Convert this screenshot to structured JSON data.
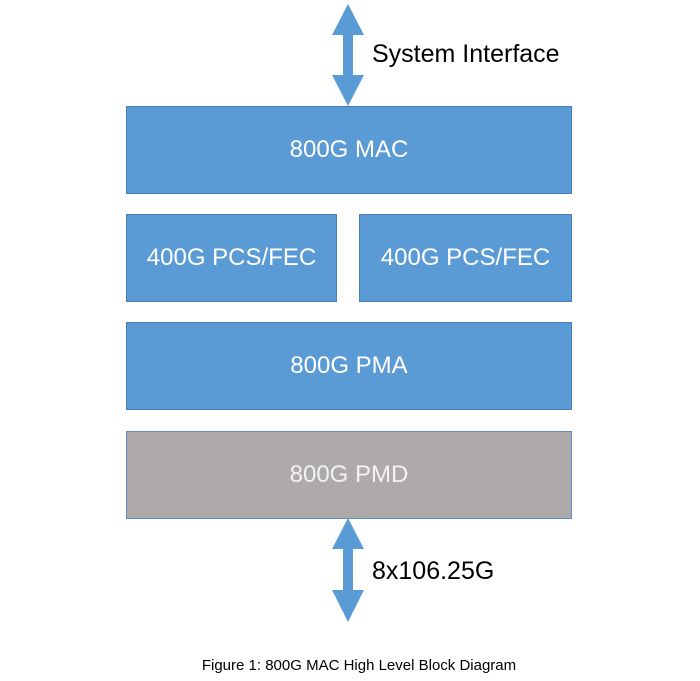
{
  "diagram": {
    "top_interface_label": "System Interface",
    "bottom_interface_label": "8x106.25G",
    "blocks": {
      "mac": "800G MAC",
      "pcs_fec_left": "400G PCS/FEC",
      "pcs_fec_right": "400G PCS/FEC",
      "pma": "800G PMA",
      "pmd": "800G PMD"
    },
    "caption": "Figure 1: 800G MAC High Level Block Diagram",
    "colors": {
      "block_blue": "#5b9bd5",
      "block_gray": "#aeaaaa",
      "arrow": "#5b9bd5"
    }
  }
}
